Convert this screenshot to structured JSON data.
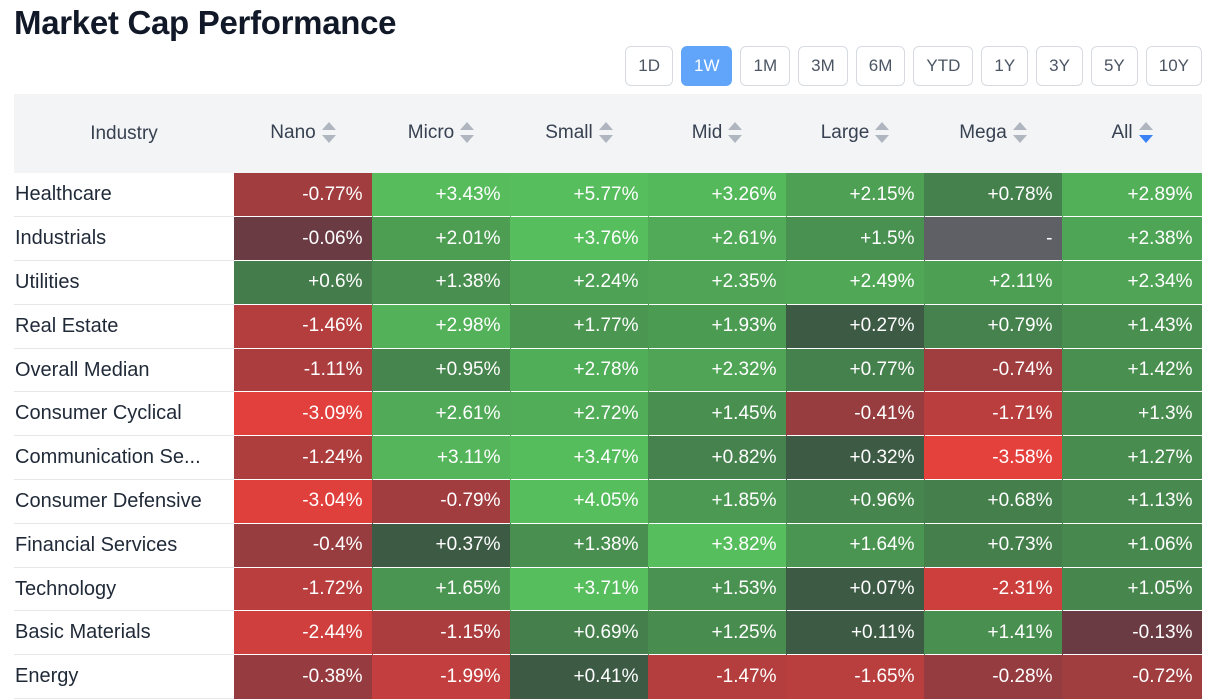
{
  "title": "Market Cap Performance",
  "timeframes": [
    "1D",
    "1W",
    "1M",
    "3M",
    "6M",
    "YTD",
    "1Y",
    "3Y",
    "5Y",
    "10Y"
  ],
  "active_timeframe": "1W",
  "chart_data": {
    "type": "heatmap",
    "columns": [
      "Industry",
      "Nano",
      "Micro",
      "Small",
      "Mid",
      "Large",
      "Mega",
      "All"
    ],
    "sorted_column": "All",
    "sort_direction": "desc",
    "rows": [
      {
        "industry": "Healthcare",
        "values": [
          "-0.77%",
          "+3.43%",
          "+5.77%",
          "+3.26%",
          "+2.15%",
          "+0.78%",
          "+2.89%"
        ]
      },
      {
        "industry": "Industrials",
        "values": [
          "-0.06%",
          "+2.01%",
          "+3.76%",
          "+2.61%",
          "+1.5%",
          "-",
          "+2.38%"
        ]
      },
      {
        "industry": "Utilities",
        "values": [
          "+0.6%",
          "+1.38%",
          "+2.24%",
          "+2.35%",
          "+2.49%",
          "+2.11%",
          "+2.34%"
        ]
      },
      {
        "industry": "Real Estate",
        "values": [
          "-1.46%",
          "+2.98%",
          "+1.77%",
          "+1.93%",
          "+0.27%",
          "+0.79%",
          "+1.43%"
        ]
      },
      {
        "industry": "Overall Median",
        "values": [
          "-1.11%",
          "+0.95%",
          "+2.78%",
          "+2.32%",
          "+0.77%",
          "-0.74%",
          "+1.42%"
        ]
      },
      {
        "industry": "Consumer Cyclical",
        "values": [
          "-3.09%",
          "+2.61%",
          "+2.72%",
          "+1.45%",
          "-0.41%",
          "-1.71%",
          "+1.3%"
        ]
      },
      {
        "industry": "Communication Se...",
        "values": [
          "-1.24%",
          "+3.11%",
          "+3.47%",
          "+0.82%",
          "+0.32%",
          "-3.58%",
          "+1.27%"
        ]
      },
      {
        "industry": "Consumer Defensive",
        "values": [
          "-3.04%",
          "-0.79%",
          "+4.05%",
          "+1.85%",
          "+0.96%",
          "+0.68%",
          "+1.13%"
        ]
      },
      {
        "industry": "Financial Services",
        "values": [
          "-0.4%",
          "+0.37%",
          "+1.38%",
          "+3.82%",
          "+1.64%",
          "+0.73%",
          "+1.06%"
        ]
      },
      {
        "industry": "Technology",
        "values": [
          "-1.72%",
          "+1.65%",
          "+3.71%",
          "+1.53%",
          "+0.07%",
          "-2.31%",
          "+1.05%"
        ]
      },
      {
        "industry": "Basic Materials",
        "values": [
          "-2.44%",
          "-1.15%",
          "+0.69%",
          "+1.25%",
          "+0.11%",
          "+1.41%",
          "-0.13%"
        ]
      },
      {
        "industry": "Energy",
        "values": [
          "-0.38%",
          "-1.99%",
          "+0.41%",
          "-1.47%",
          "-1.65%",
          "-0.28%",
          "-0.72%"
        ]
      }
    ]
  }
}
